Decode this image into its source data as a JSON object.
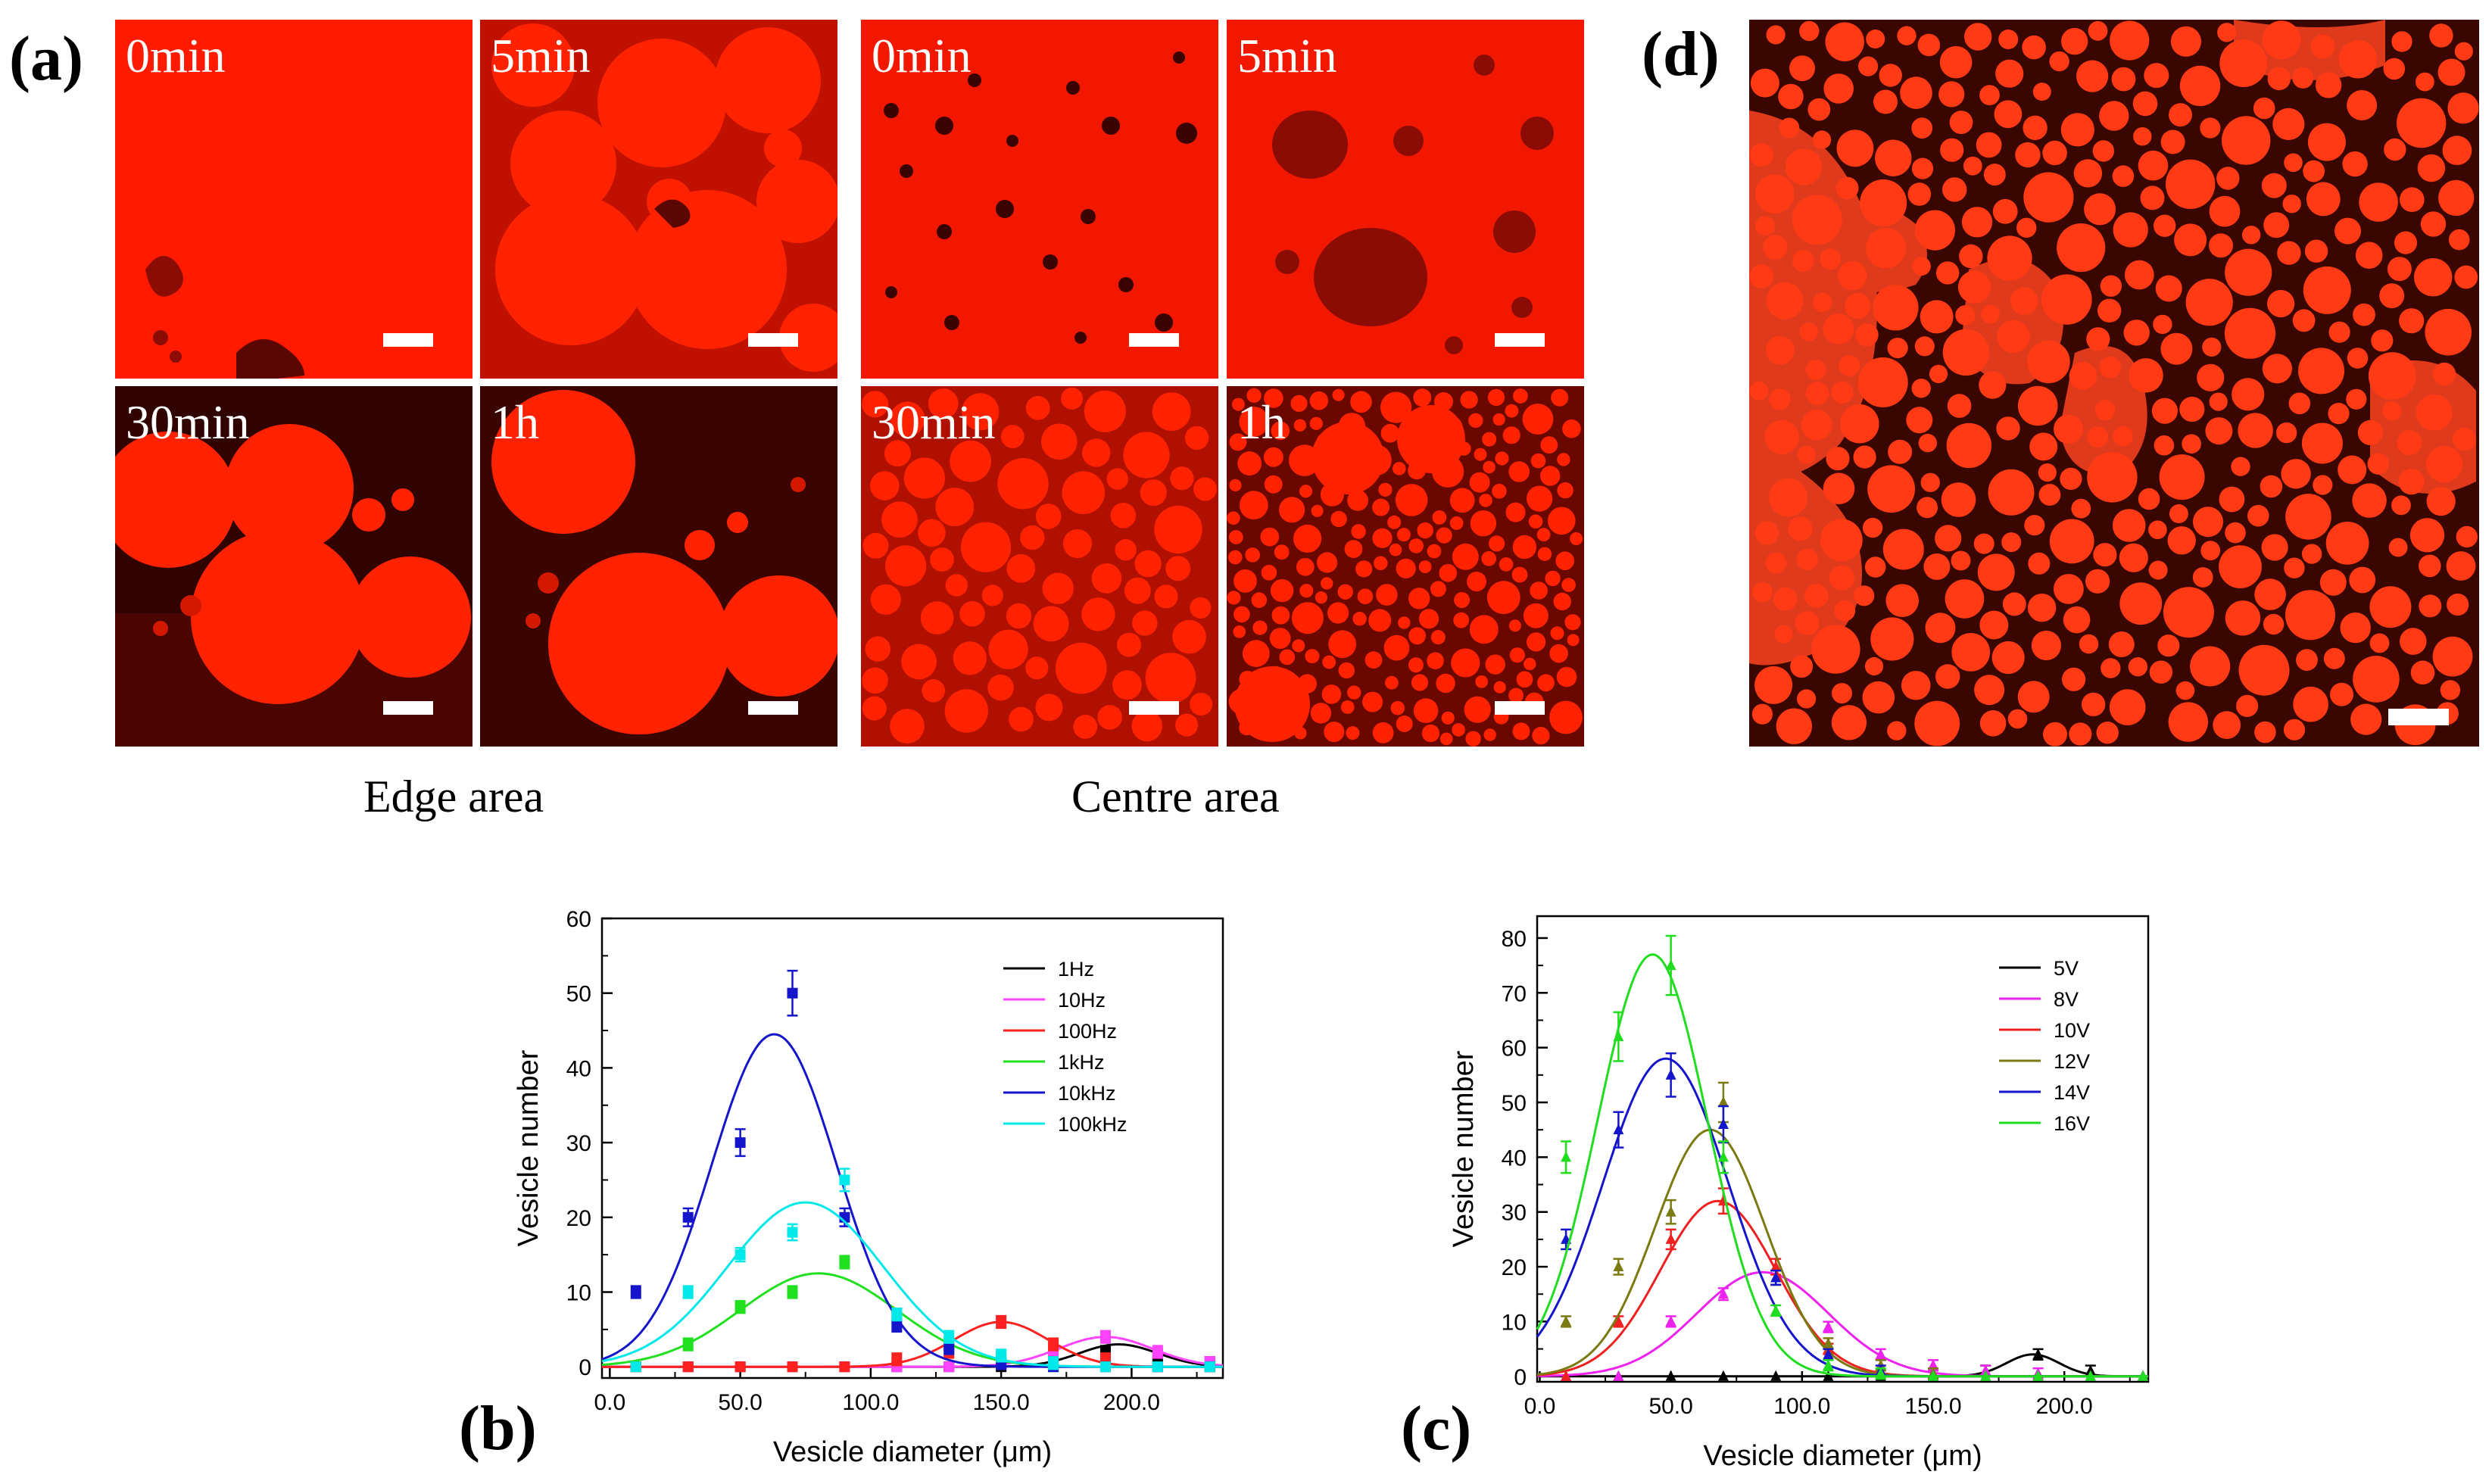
{
  "panel_labels": {
    "a": "(a)",
    "b": "(b)",
    "c": "(c)",
    "d": "(d)"
  },
  "micrographs": {
    "edge_area": "Edge area",
    "centre_area": "Centre area",
    "edge_tiles": [
      "0min",
      "5min",
      "30min",
      "1h"
    ],
    "centre_tiles": [
      "0min",
      "5min",
      "30min",
      "1h"
    ],
    "colors": {
      "red": "#ff1a00",
      "dark": "#8a0c05",
      "black": "#1a0200"
    }
  },
  "chart_data": [
    {
      "id": "b",
      "type": "line",
      "xlabel": "Vesicle diameter (μm)",
      "ylabel": "Vesicle number",
      "xlim": [
        -3,
        235
      ],
      "ylim": [
        -1.5,
        60
      ],
      "xticks": [
        0,
        50,
        100,
        150,
        200
      ],
      "xtick_labels": [
        "0.0",
        "50.0",
        "100.0",
        "150.0",
        "200.0"
      ],
      "yticks": [
        0,
        10,
        20,
        30,
        40,
        50,
        60
      ],
      "ytick_labels": [
        "0",
        "10",
        "20",
        "30",
        "40",
        "50",
        "60"
      ],
      "x": [
        10,
        30,
        50,
        70,
        90,
        110,
        130,
        150,
        170,
        190,
        210,
        230
      ],
      "series": [
        {
          "name": "1Hz",
          "color": "#000000",
          "marker": "square",
          "values": [
            0,
            0,
            0,
            0,
            0,
            0,
            0,
            0,
            0.5,
            2,
            1.5,
            0.5
          ],
          "fit": {
            "amp": 3,
            "mu": 195,
            "sigma": 15
          }
        },
        {
          "name": "10Hz",
          "color": "#ff44ff",
          "marker": "square",
          "values": [
            0,
            0,
            0,
            0,
            0,
            0,
            0,
            0.3,
            1.5,
            4,
            2,
            0.5
          ],
          "fit": {
            "amp": 4,
            "mu": 190,
            "sigma": 18
          }
        },
        {
          "name": "100Hz",
          "color": "#ff2020",
          "marker": "square",
          "values": [
            0,
            0,
            0,
            0,
            0,
            1,
            2,
            6,
            3,
            1,
            0,
            0
          ],
          "fit": {
            "amp": 6,
            "mu": 150,
            "sigma": 18
          }
        },
        {
          "name": "1kHz",
          "color": "#20e020",
          "marker": "square",
          "values": [
            0,
            3,
            8,
            10,
            14,
            7,
            3,
            1,
            0,
            0,
            0,
            0
          ],
          "fit": {
            "amp": 12.5,
            "mu": 80,
            "sigma": 30
          }
        },
        {
          "name": "10kHz",
          "color": "#1515cc",
          "marker": "square",
          "values": [
            10,
            20,
            30,
            50,
            20,
            5.5,
            2.5,
            0.5,
            0,
            0,
            0,
            0
          ],
          "fit": {
            "amp": 44.5,
            "mu": 63,
            "sigma": 24
          }
        },
        {
          "name": "100kHz",
          "color": "#00e8e8",
          "marker": "square",
          "values": [
            0,
            10,
            15,
            18,
            25,
            7,
            4,
            1.5,
            0.5,
            0,
            0,
            0
          ],
          "fit": {
            "amp": 22,
            "mu": 75,
            "sigma": 30
          }
        }
      ]
    },
    {
      "id": "c",
      "type": "line",
      "xlabel": "Vesicle diameter (μm)",
      "ylabel": "Vesicle number",
      "xlim": [
        -1,
        232
      ],
      "ylim": [
        -1,
        84
      ],
      "xticks": [
        0,
        50,
        100,
        150,
        200
      ],
      "xtick_labels": [
        "0.0",
        "50.0",
        "100.0",
        "150.0",
        "200.0"
      ],
      "yticks": [
        0,
        10,
        20,
        30,
        40,
        50,
        60,
        70,
        80
      ],
      "ytick_labels": [
        "0",
        "10",
        "20",
        "30",
        "40",
        "50",
        "60",
        "70",
        "80"
      ],
      "x": [
        10,
        30,
        50,
        70,
        90,
        110,
        130,
        150,
        170,
        190,
        210,
        230
      ],
      "series": [
        {
          "name": "5V",
          "color": "#000000",
          "marker": "triangle",
          "values": [
            0,
            0,
            0,
            0,
            0,
            0,
            0,
            0,
            1,
            4,
            1,
            0
          ],
          "fit": {
            "amp": 4,
            "mu": 188,
            "sigma": 10
          }
        },
        {
          "name": "8V",
          "color": "#ee22ee",
          "marker": "triangle",
          "values": [
            0,
            0,
            10,
            15,
            18,
            9,
            4,
            2,
            1,
            0.5,
            0,
            0
          ],
          "fit": {
            "amp": 19,
            "mu": 85,
            "sigma": 25
          }
        },
        {
          "name": "10V",
          "color": "#ee2020",
          "marker": "triangle",
          "values": [
            0,
            10,
            25,
            32,
            20,
            5,
            2,
            0.5,
            0,
            0,
            0,
            0
          ],
          "fit": {
            "amp": 32,
            "mu": 68,
            "sigma": 22
          }
        },
        {
          "name": "12V",
          "color": "#7a7a10",
          "marker": "triangle",
          "values": [
            10,
            20,
            30,
            50,
            18,
            6,
            2,
            0.5,
            0,
            0,
            0,
            0
          ],
          "fit": {
            "amp": 45,
            "mu": 65,
            "sigma": 21
          }
        },
        {
          "name": "14V",
          "color": "#1515cc",
          "marker": "triangle",
          "values": [
            25,
            45,
            55,
            46,
            18,
            4,
            1,
            0,
            0,
            0,
            0,
            0
          ],
          "fit": {
            "amp": 58,
            "mu": 48,
            "sigma": 24
          }
        },
        {
          "name": "16V",
          "color": "#20dd20",
          "marker": "triangle",
          "values": [
            40,
            62,
            75,
            40,
            12,
            2,
            0.5,
            0,
            0,
            0,
            0,
            0
          ],
          "fit": {
            "amp": 77,
            "mu": 43,
            "sigma": 21
          }
        }
      ]
    }
  ]
}
